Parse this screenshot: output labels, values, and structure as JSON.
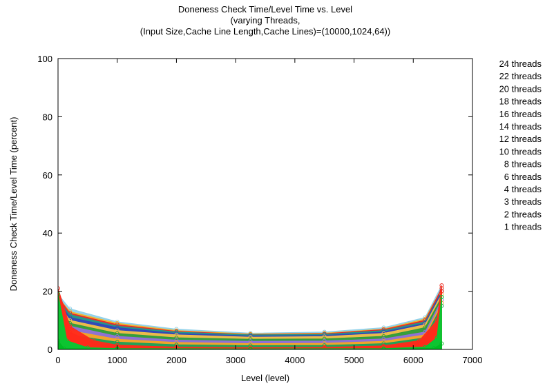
{
  "chart_data": {
    "type": "scatter",
    "title": [
      "Doneness Check Time/Level Time vs. Level",
      "(varying Threads,",
      "(Input Size,Cache Line Length,Cache Lines)=(10000,1024,64))"
    ],
    "xlabel": "Level (level)",
    "ylabel": "Doneness Check Time/Level Time (percent)",
    "xlim": [
      0,
      7000
    ],
    "ylim": [
      0,
      100
    ],
    "xticks": [
      0,
      1000,
      2000,
      3000,
      4000,
      5000,
      6000,
      7000
    ],
    "yticks": [
      0,
      20,
      40,
      60,
      80,
      100
    ],
    "grid": false,
    "legend_position": "outside-right",
    "series": [
      {
        "name": "24 threads",
        "color": "#8fd1ea",
        "marker": "band",
        "values": [
          [
            0,
            19
          ],
          [
            200,
            14
          ],
          [
            1000,
            9.5
          ],
          [
            2000,
            7
          ],
          [
            3250,
            5.6
          ],
          [
            4500,
            6
          ],
          [
            5500,
            7.5
          ],
          [
            6200,
            11
          ],
          [
            6480,
            22
          ]
        ]
      },
      {
        "name": "22 threads",
        "color": "#f2b428",
        "marker": "band",
        "values": [
          [
            0,
            18
          ],
          [
            200,
            13
          ],
          [
            1000,
            9
          ],
          [
            2000,
            6.5
          ],
          [
            3250,
            5.3
          ],
          [
            4500,
            5.6
          ],
          [
            5500,
            7
          ],
          [
            6200,
            10.5
          ],
          [
            6480,
            21
          ]
        ]
      },
      {
        "name": "20 threads",
        "color": "#e8282a",
        "marker": "band",
        "values": [
          [
            0,
            18
          ],
          [
            200,
            12.5
          ],
          [
            1000,
            8.5
          ],
          [
            2000,
            6.2
          ],
          [
            3250,
            5.1
          ],
          [
            4500,
            5.4
          ],
          [
            5500,
            6.8
          ],
          [
            6200,
            10
          ],
          [
            6480,
            21
          ]
        ]
      },
      {
        "name": "18 threads",
        "color": "#1f9a8c",
        "marker": "band",
        "values": [
          [
            0,
            17
          ],
          [
            200,
            12
          ],
          [
            1000,
            8
          ],
          [
            2000,
            6
          ],
          [
            3250,
            5
          ],
          [
            4500,
            5.2
          ],
          [
            5500,
            6.5
          ],
          [
            6200,
            9.5
          ],
          [
            6480,
            20
          ]
        ]
      },
      {
        "name": "16 threads",
        "color": "#3344bb",
        "marker": "band",
        "values": [
          [
            0,
            17
          ],
          [
            200,
            11
          ],
          [
            1000,
            7.5
          ],
          [
            2000,
            5.5
          ],
          [
            3250,
            4.6
          ],
          [
            4500,
            4.8
          ],
          [
            5500,
            6
          ],
          [
            6200,
            9
          ],
          [
            6480,
            20
          ]
        ]
      },
      {
        "name": "14 threads",
        "color": "#f5c146",
        "marker": "band",
        "values": [
          [
            0,
            16
          ],
          [
            200,
            10
          ],
          [
            1000,
            6.5
          ],
          [
            2000,
            5
          ],
          [
            3250,
            4.2
          ],
          [
            4500,
            4.4
          ],
          [
            5500,
            5.5
          ],
          [
            6200,
            8.5
          ],
          [
            6480,
            19
          ]
        ]
      },
      {
        "name": "12 threads",
        "color": "#2e9c3a",
        "marker": "band",
        "values": [
          [
            0,
            16
          ],
          [
            200,
            9
          ],
          [
            1000,
            5.5
          ],
          [
            2000,
            4
          ],
          [
            3250,
            3.5
          ],
          [
            4500,
            3.6
          ],
          [
            5500,
            4.5
          ],
          [
            6200,
            7.5
          ],
          [
            6480,
            18
          ]
        ]
      },
      {
        "name": "10 threads",
        "color": "#9370db",
        "marker": "band",
        "values": [
          [
            0,
            15
          ],
          [
            200,
            8
          ],
          [
            1000,
            4.5
          ],
          [
            2000,
            3.2
          ],
          [
            3250,
            2.8
          ],
          [
            4500,
            2.9
          ],
          [
            5500,
            3.6
          ],
          [
            6200,
            6
          ],
          [
            6480,
            17
          ]
        ]
      },
      {
        "name": "8 threads",
        "color": "#f5a623",
        "marker": "band",
        "values": [
          [
            0,
            15
          ],
          [
            200,
            6.5
          ],
          [
            1000,
            3.5
          ],
          [
            2000,
            2.4
          ],
          [
            3250,
            2
          ],
          [
            4500,
            2.1
          ],
          [
            5500,
            2.8
          ],
          [
            6200,
            5
          ],
          [
            6480,
            16
          ]
        ]
      },
      {
        "name": "6 threads",
        "color": "#1aa05a",
        "marker": "band",
        "values": [
          [
            0,
            14
          ],
          [
            200,
            5
          ],
          [
            1000,
            2.5
          ],
          [
            2000,
            1.6
          ],
          [
            3250,
            1.3
          ],
          [
            4500,
            1.4
          ],
          [
            5500,
            2
          ],
          [
            6200,
            4
          ],
          [
            6480,
            15
          ]
        ]
      },
      {
        "name": "4 threads",
        "color": "#ff2a1a",
        "marker": "band",
        "values": [
          [
            0,
            21
          ],
          [
            200,
            8
          ],
          [
            600,
            3
          ],
          [
            1000,
            1.5
          ],
          [
            2000,
            0.8
          ],
          [
            3250,
            0.6
          ],
          [
            4500,
            0.7
          ],
          [
            5500,
            1.2
          ],
          [
            6100,
            3
          ],
          [
            6400,
            10
          ],
          [
            6480,
            22
          ]
        ]
      },
      {
        "name": "3 threads",
        "color": "#ff2a1a",
        "marker": "band",
        "values": [
          [
            0,
            19
          ],
          [
            200,
            6
          ],
          [
            600,
            2
          ],
          [
            1000,
            1
          ],
          [
            2000,
            0.5
          ],
          [
            3250,
            0.4
          ],
          [
            4500,
            0.5
          ],
          [
            5500,
            0.9
          ],
          [
            6100,
            2.2
          ],
          [
            6400,
            8
          ],
          [
            6480,
            20
          ]
        ]
      },
      {
        "name": "2 threads",
        "color": "#00cc33",
        "marker": "band",
        "values": [
          [
            0,
            19
          ],
          [
            150,
            3
          ],
          [
            500,
            0.6
          ],
          [
            1000,
            0.3
          ],
          [
            3250,
            0.2
          ],
          [
            5500,
            0.3
          ],
          [
            6200,
            0.8
          ],
          [
            6400,
            4
          ],
          [
            6480,
            18
          ]
        ]
      },
      {
        "name": "1 threads",
        "color": "#00bb22",
        "marker": "band",
        "values": [
          [
            0,
            3
          ],
          [
            100,
            0.3
          ],
          [
            1000,
            0.1
          ],
          [
            3250,
            0.05
          ],
          [
            5500,
            0.1
          ],
          [
            6350,
            0.4
          ],
          [
            6480,
            2
          ]
        ]
      }
    ]
  }
}
